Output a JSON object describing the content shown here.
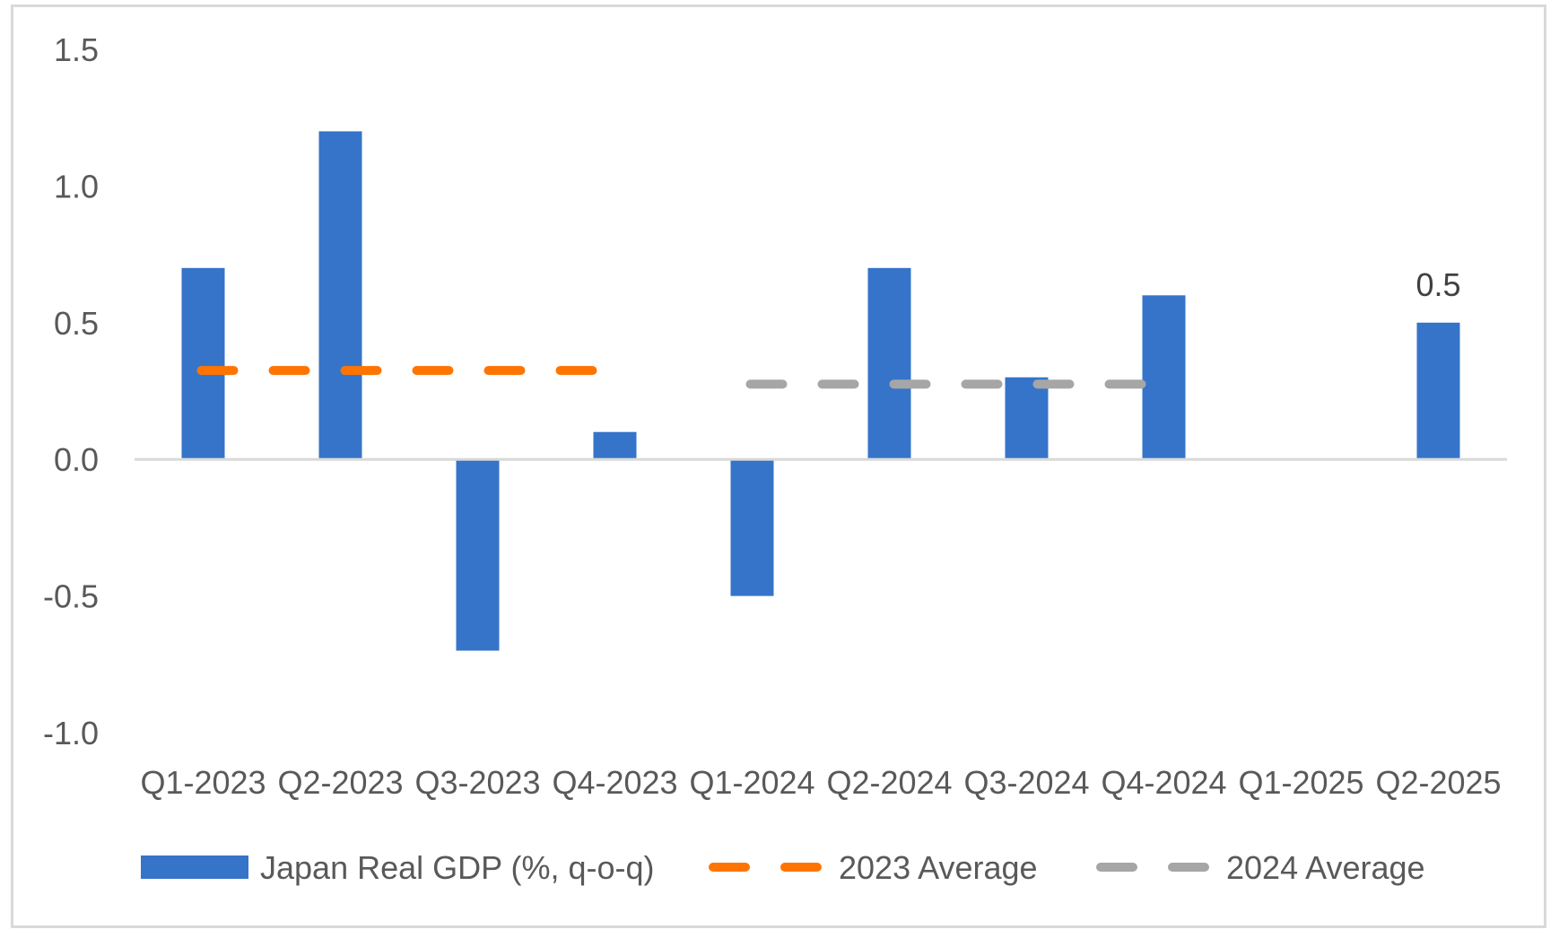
{
  "chart_data": {
    "type": "bar",
    "categories": [
      "Q1-2023",
      "Q2-2023",
      "Q3-2023",
      "Q4-2023",
      "Q1-2024",
      "Q2-2024",
      "Q3-2024",
      "Q4-2024",
      "Q1-2025",
      "Q2-2025"
    ],
    "series": [
      {
        "name": "Japan Real GDP (%, q-o-q)",
        "type": "bar",
        "color": "#3574c9",
        "values": [
          0.7,
          1.2,
          -0.7,
          0.1,
          -0.5,
          0.7,
          0.3,
          0.6,
          null,
          0.5
        ]
      },
      {
        "name": "2023 Average",
        "type": "line",
        "style": "dashed",
        "color": "#ff7400",
        "values": [
          0.325,
          0.325,
          0.325,
          0.325,
          null,
          null,
          null,
          null,
          null,
          null
        ]
      },
      {
        "name": "2024 Average",
        "type": "line",
        "style": "dashed",
        "color": "#a6a6a6",
        "values": [
          null,
          null,
          null,
          null,
          0.275,
          0.275,
          0.275,
          0.275,
          null,
          null
        ]
      }
    ],
    "data_labels": [
      {
        "category": "Q2-2025",
        "text": "0.5"
      }
    ],
    "y_ticks": [
      "1.5",
      "1.0",
      "0.5",
      "0.0",
      "-0.5",
      "-1.0"
    ],
    "y_tick_values": [
      1.5,
      1.0,
      0.5,
      0.0,
      -0.5,
      -1.0
    ],
    "ylim": [
      -1.0,
      1.5
    ],
    "grid": false,
    "legend_position": "bottom",
    "title": "",
    "xlabel": "",
    "ylabel": ""
  }
}
